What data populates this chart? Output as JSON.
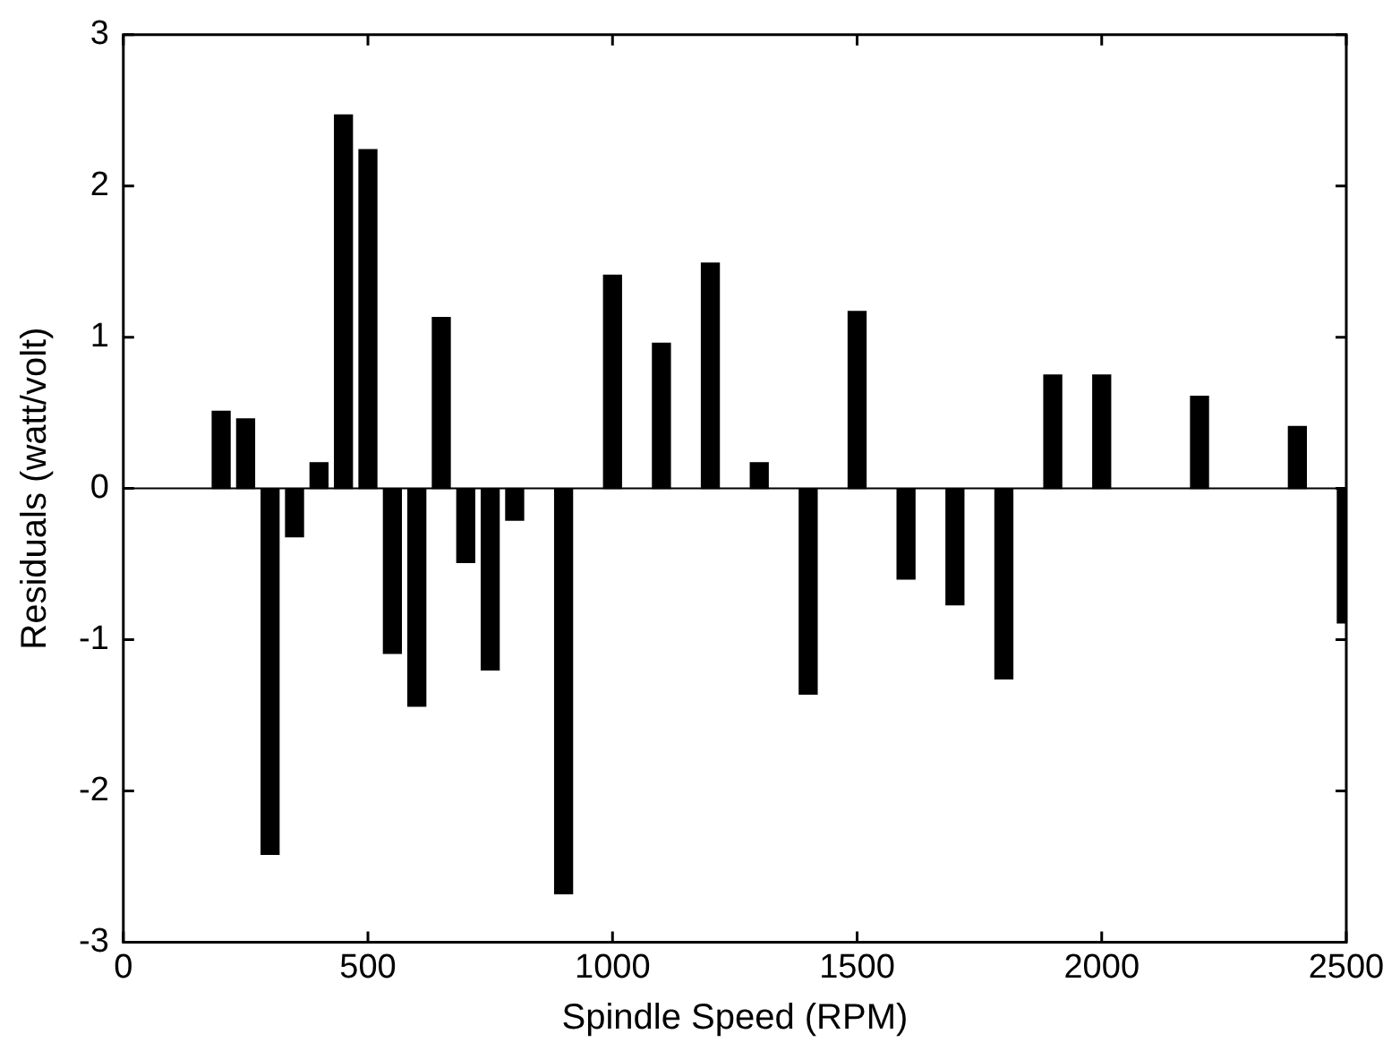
{
  "chart_data": {
    "type": "bar",
    "xlabel": "Spindle Speed (RPM)",
    "ylabel": "Residuals (watt/volt)",
    "x": [
      200,
      250,
      300,
      350,
      400,
      450,
      500,
      550,
      600,
      650,
      700,
      750,
      800,
      900,
      1000,
      1100,
      1200,
      1300,
      1400,
      1500,
      1600,
      1700,
      1800,
      1900,
      2000,
      2200,
      2400,
      2500
    ],
    "values": [
      0.51,
      0.46,
      -2.42,
      -0.32,
      0.17,
      2.47,
      2.24,
      -1.09,
      -1.44,
      1.13,
      -0.49,
      -1.2,
      -0.21,
      -2.68,
      1.41,
      0.96,
      1.49,
      0.17,
      -1.36,
      1.17,
      -0.6,
      -0.77,
      -1.26,
      0.75,
      0.75,
      0.61,
      0.41,
      -0.89
    ],
    "color": "#000000",
    "xlim": [
      0,
      2500
    ],
    "xticks": [
      0,
      500,
      1000,
      1500,
      2000,
      2500
    ],
    "ylim": [
      -3,
      3
    ],
    "yticks": [
      -3,
      -2,
      -1,
      0,
      1,
      2,
      3
    ],
    "ref_lines": [
      {
        "axis": "y",
        "value": 0,
        "color": "#000000"
      }
    ],
    "grid": false,
    "legend": false
  }
}
